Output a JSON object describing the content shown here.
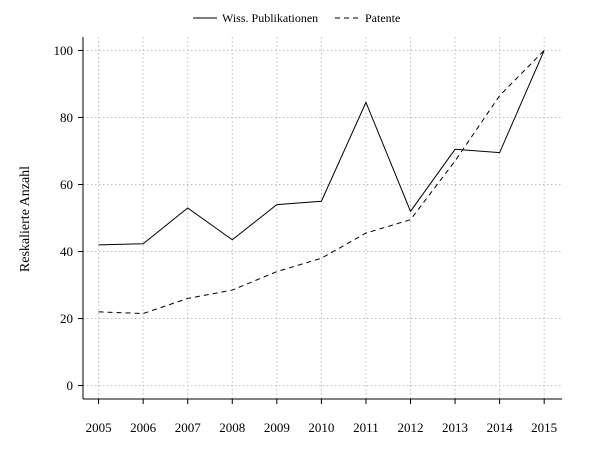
{
  "chart_data": {
    "type": "line",
    "title": "",
    "xlabel": "",
    "ylabel": "Reskalierte Anzahl",
    "x": [
      2005,
      2006,
      2007,
      2008,
      2009,
      2010,
      2011,
      2012,
      2013,
      2014,
      2015
    ],
    "xticks": [
      "2005",
      "2006",
      "2007",
      "2008",
      "2009",
      "2010",
      "2011",
      "2012",
      "2013",
      "2014",
      "2015"
    ],
    "yticks": [
      "0",
      "20",
      "40",
      "60",
      "80",
      "100"
    ],
    "ylim": [
      -4,
      104
    ],
    "xlim": [
      2004.65,
      2015.4
    ],
    "grid": true,
    "legend_position": "top-center",
    "series": [
      {
        "name": "Wiss. Publikationen",
        "style": "solid",
        "values": [
          42,
          42.3,
          53,
          43.5,
          54,
          55,
          84.5,
          52,
          70.5,
          69.5,
          100
        ]
      },
      {
        "name": "Patente",
        "style": "dashed",
        "values": [
          22,
          21.5,
          26,
          28.5,
          34,
          38,
          45.5,
          49.5,
          67,
          86.5,
          100
        ]
      }
    ],
    "colors": {
      "line": "#000000",
      "grid": "#bdbdbd",
      "axis": "#000000"
    }
  }
}
